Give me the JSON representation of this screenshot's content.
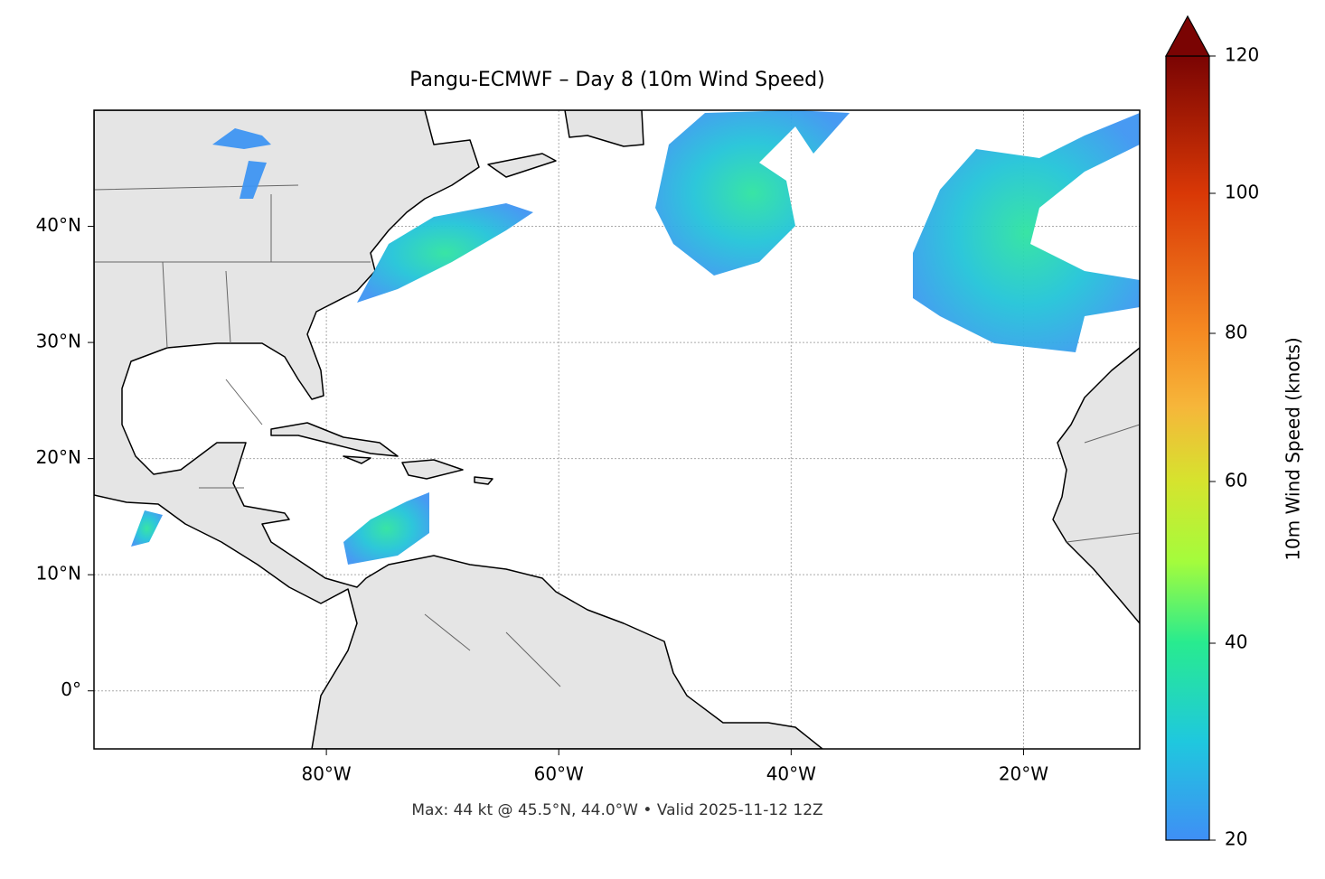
{
  "chart_data": {
    "type": "map",
    "title": "Pangu-ECMWF – Day 8 (10m Wind Speed)",
    "annotation": "Max: 44 kt @ 45.5°N, 44.0°W • Valid 2025-11-12 12Z",
    "xlim": [
      -100,
      -10
    ],
    "ylim": [
      -5,
      50
    ],
    "xticks": [
      {
        "value": -80,
        "label": "80°W"
      },
      {
        "value": -60,
        "label": "60°W"
      },
      {
        "value": -40,
        "label": "40°W"
      },
      {
        "value": -20,
        "label": "20°W"
      }
    ],
    "yticks": [
      {
        "value": 0,
        "label": "0°"
      },
      {
        "value": 10,
        "label": "10°N"
      },
      {
        "value": 20,
        "label": "20°N"
      },
      {
        "value": 30,
        "label": "30°N"
      },
      {
        "value": 40,
        "label": "40°N"
      }
    ],
    "grid": true,
    "colorbar": {
      "label": "10m Wind Speed (knots)",
      "ticks": [
        20,
        40,
        60,
        80,
        100,
        120
      ],
      "extend": "max"
    }
  }
}
